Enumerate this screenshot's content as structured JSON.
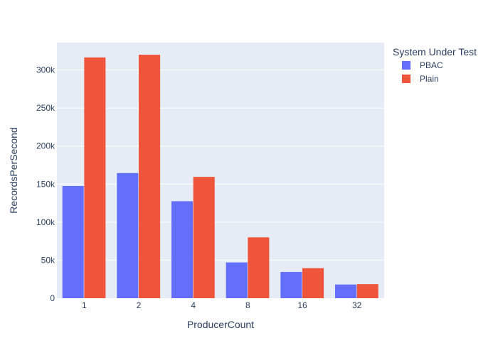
{
  "chart_data": {
    "type": "bar",
    "categories": [
      "1",
      "2",
      "4",
      "8",
      "16",
      "32"
    ],
    "series": [
      {
        "name": "PBAC",
        "color": "#636efa",
        "values": [
          147500,
          164500,
          127500,
          47000,
          34500,
          18000
        ]
      },
      {
        "name": "Plain",
        "color": "#ef553b",
        "values": [
          316500,
          320000,
          159500,
          80000,
          39500,
          18500
        ]
      }
    ],
    "xlabel": "ProducerCount",
    "ylabel": "RecordsPerSecond",
    "ylim": [
      0,
      336000
    ],
    "yticks": [
      {
        "value": 0,
        "label": "0"
      },
      {
        "value": 50000,
        "label": "50k"
      },
      {
        "value": 100000,
        "label": "100k"
      },
      {
        "value": 150000,
        "label": "150k"
      },
      {
        "value": 200000,
        "label": "200k"
      },
      {
        "value": 250000,
        "label": "250k"
      },
      {
        "value": 300000,
        "label": "300k"
      }
    ],
    "legend": {
      "title": "System Under Test",
      "placement": "top-right"
    },
    "grid": true,
    "plot_background": "#e5ecf6"
  }
}
